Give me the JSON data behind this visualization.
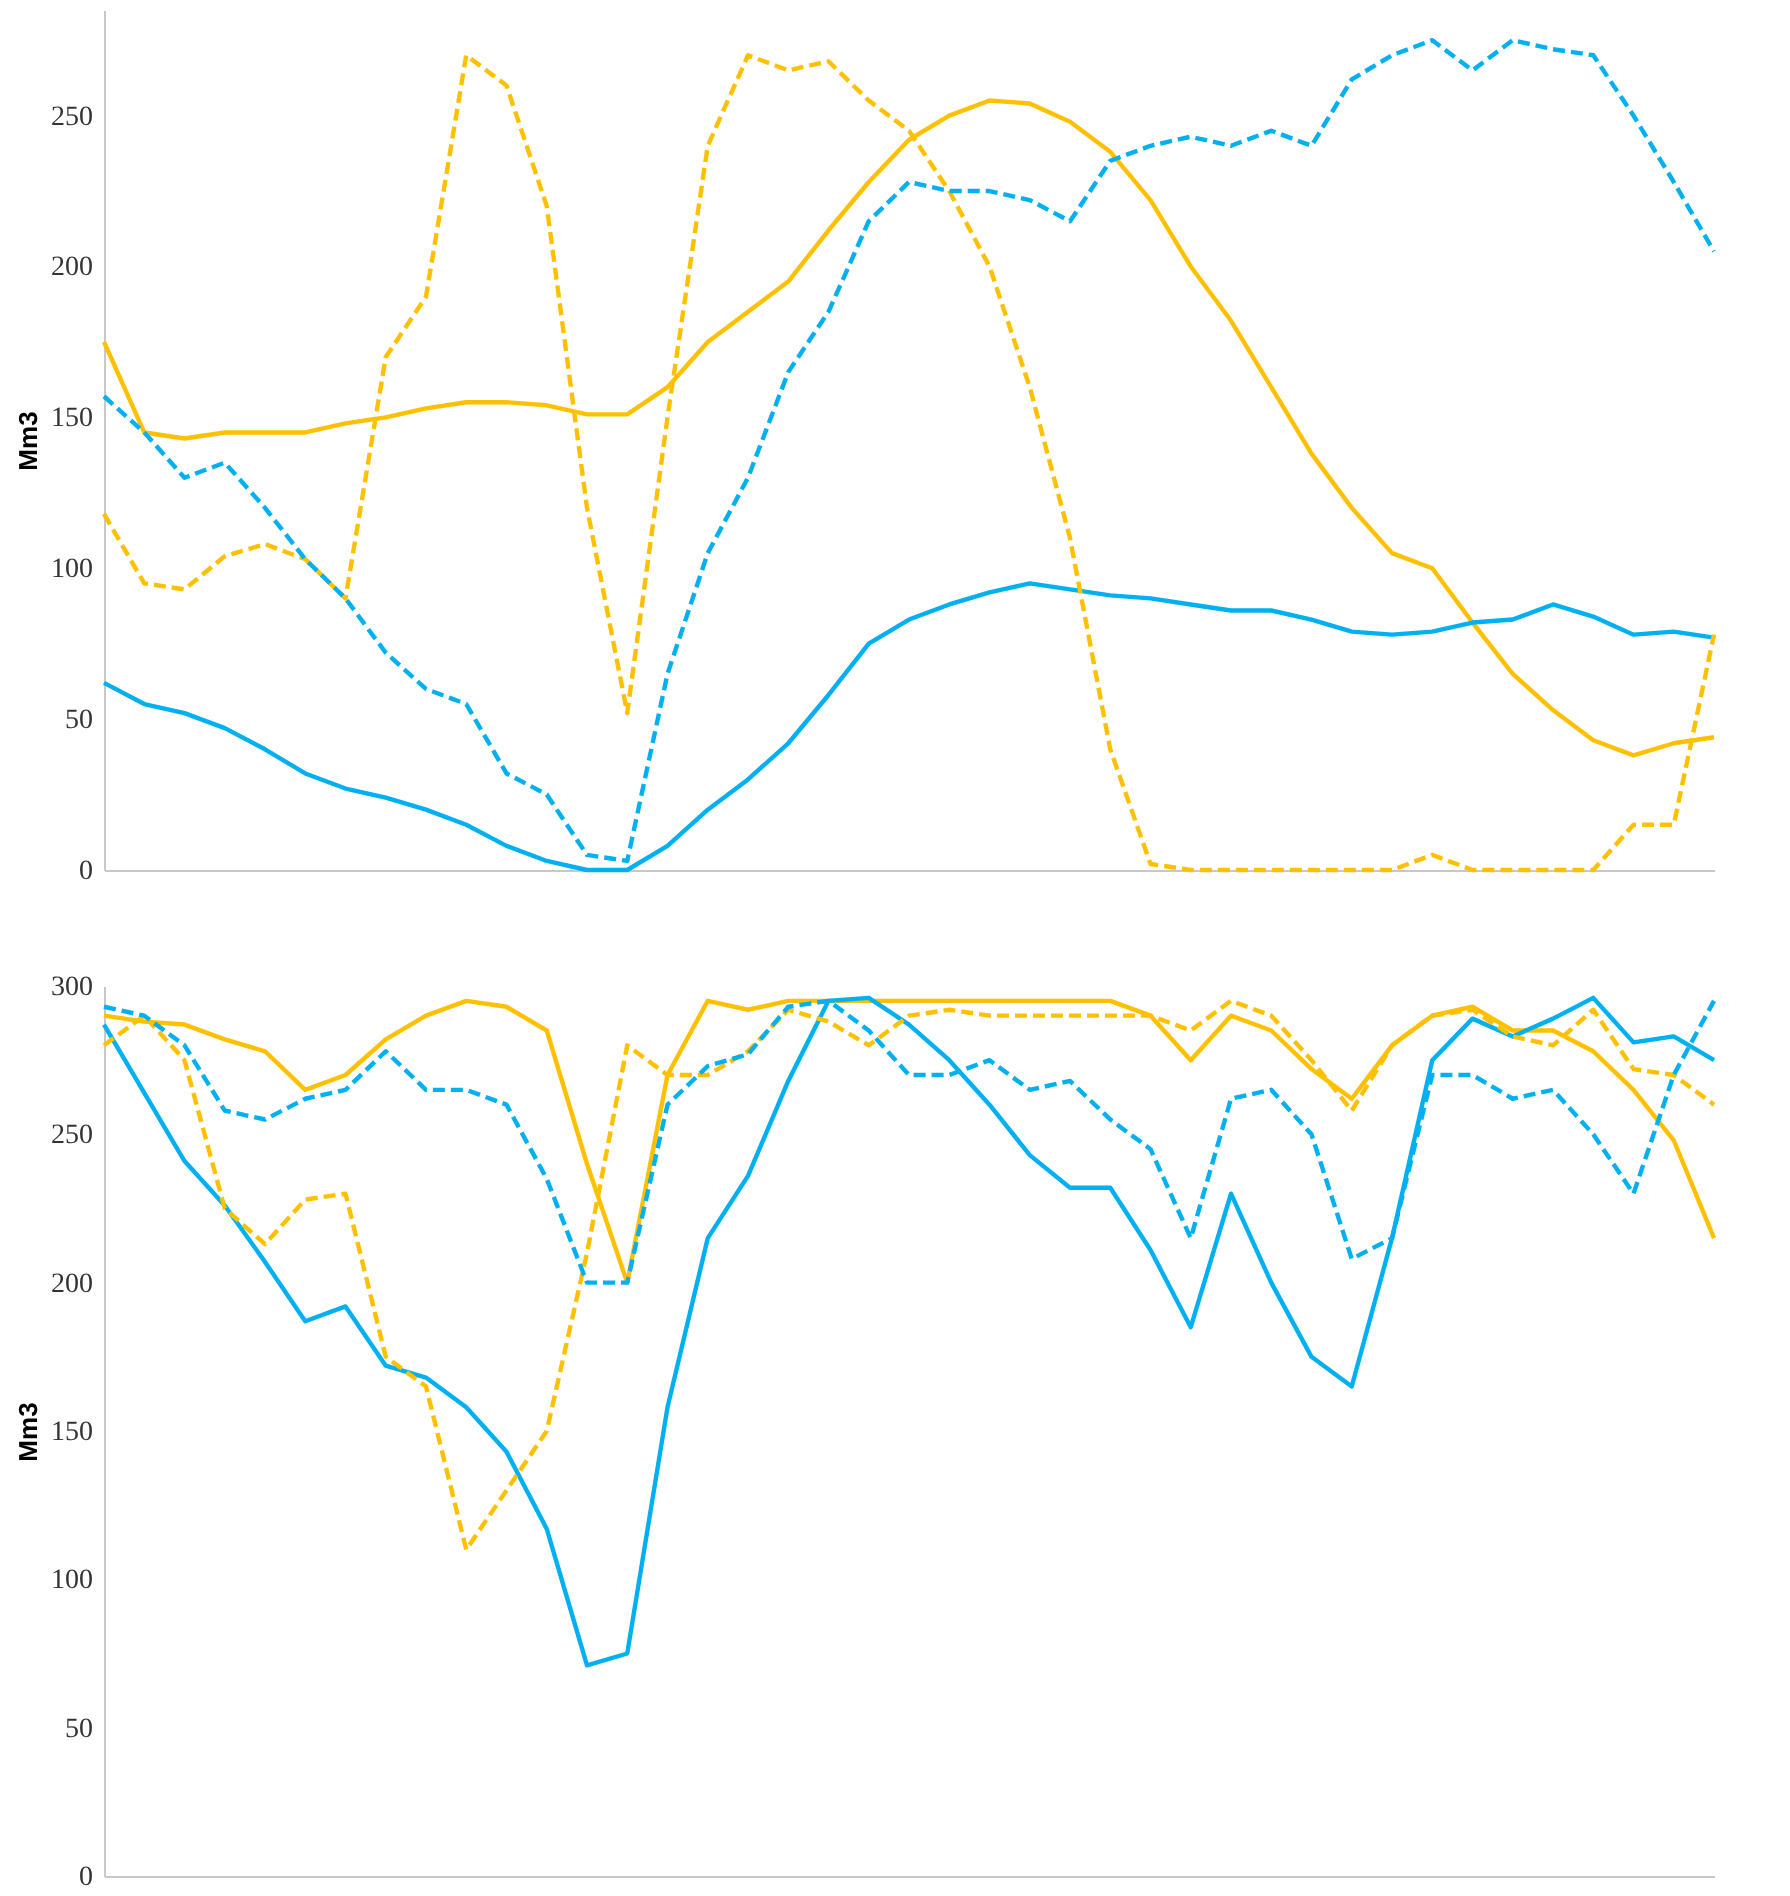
{
  "chart_data": [
    {
      "type": "line",
      "ylabel": "Mm3",
      "categories": [
        null,
        null,
        null,
        null,
        null,
        null,
        null,
        null,
        null,
        null,
        null,
        null,
        null,
        null,
        null,
        null,
        null,
        null,
        null,
        null,
        null,
        null,
        null,
        null,
        null,
        null,
        null,
        null,
        null,
        null,
        null,
        null,
        null,
        null,
        null,
        null,
        null,
        null,
        null,
        null,
        null
      ],
      "ylim": [
        0,
        285
      ],
      "yticks": [
        0,
        50,
        100,
        150,
        200,
        250
      ],
      "tick_labels": "y",
      "series": [
        {
          "color": "#ffc000",
          "line_style": "solid",
          "values": [
            175,
            145,
            143,
            145,
            145,
            145,
            148,
            150,
            153,
            155,
            155,
            154,
            151,
            151,
            160,
            175,
            185,
            195,
            212,
            228,
            242,
            250,
            255,
            254,
            248,
            238,
            222,
            200,
            182,
            160,
            138,
            120,
            105,
            100,
            82,
            65,
            53,
            43,
            38,
            42,
            44
          ]
        },
        {
          "color": "#00b0f0",
          "line_style": "solid",
          "values": [
            62,
            55,
            52,
            47,
            40,
            32,
            27,
            24,
            20,
            15,
            8,
            3,
            0,
            0,
            8,
            20,
            30,
            42,
            58,
            75,
            83,
            88,
            92,
            95,
            93,
            91,
            90,
            88,
            86,
            86,
            83,
            79,
            78,
            79,
            82,
            83,
            88,
            84,
            78,
            79,
            77
          ]
        },
        {
          "color": "#ffc000",
          "line_style": "dashed",
          "values": [
            118,
            95,
            93,
            104,
            108,
            103,
            90,
            170,
            190,
            270,
            260,
            220,
            120,
            52,
            150,
            240,
            270,
            265,
            268,
            255,
            245,
            225,
            200,
            160,
            110,
            40,
            2,
            0,
            0,
            0,
            0,
            0,
            0,
            5,
            0,
            0,
            0,
            0,
            15,
            15,
            78
          ]
        },
        {
          "color": "#00b0f0",
          "line_style": "dashed",
          "values": [
            157,
            145,
            130,
            135,
            120,
            103,
            90,
            72,
            60,
            55,
            32,
            25,
            5,
            3,
            65,
            105,
            130,
            165,
            185,
            215,
            228,
            225,
            225,
            222,
            215,
            235,
            240,
            243,
            240,
            245,
            240,
            262,
            270,
            275,
            265,
            275,
            272,
            270,
            250,
            228,
            205
          ]
        }
      ]
    },
    {
      "type": "line",
      "ylabel": "Mm3",
      "categories": [
        null,
        null,
        null,
        null,
        null,
        null,
        null,
        null,
        null,
        null,
        null,
        null,
        null,
        null,
        null,
        null,
        null,
        null,
        null,
        null,
        null,
        null,
        null,
        null,
        null,
        null,
        null,
        null,
        null,
        null,
        null,
        null,
        null,
        null,
        null,
        null,
        null,
        null,
        null,
        null,
        null
      ],
      "ylim": [
        0,
        300
      ],
      "yticks": [
        0,
        50,
        100,
        150,
        200,
        250,
        300
      ],
      "tick_labels": "y",
      "series": [
        {
          "color": "#ffc000",
          "line_style": "solid",
          "values": [
            290,
            288,
            287,
            282,
            278,
            265,
            270,
            282,
            290,
            295,
            293,
            285,
            240,
            200,
            270,
            295,
            292,
            295,
            295,
            295,
            295,
            295,
            295,
            295,
            295,
            295,
            290,
            275,
            290,
            285,
            272,
            262,
            280,
            290,
            293,
            285,
            285,
            278,
            265,
            248,
            215
          ]
        },
        {
          "color": "#00b0f0",
          "line_style": "solid",
          "values": [
            287,
            264,
            241,
            226,
            207,
            187,
            192,
            172,
            168,
            158,
            143,
            117,
            71,
            75,
            158,
            215,
            236,
            268,
            295,
            296,
            287,
            275,
            260,
            243,
            232,
            232,
            211,
            185,
            230,
            200,
            175,
            165,
            215,
            275,
            289,
            283,
            289,
            296,
            281,
            283,
            275
          ]
        },
        {
          "color": "#ffc000",
          "line_style": "dashed",
          "values": [
            280,
            290,
            275,
            225,
            213,
            228,
            230,
            175,
            165,
            110,
            130,
            150,
            210,
            280,
            270,
            270,
            278,
            292,
            288,
            280,
            290,
            292,
            290,
            290,
            290,
            290,
            290,
            285,
            295,
            290,
            275,
            258,
            280,
            290,
            292,
            283,
            280,
            292,
            272,
            270,
            260
          ]
        },
        {
          "color": "#00b0f0",
          "line_style": "dashed",
          "values": [
            293,
            290,
            280,
            258,
            255,
            262,
            265,
            278,
            265,
            265,
            260,
            235,
            200,
            200,
            260,
            273,
            277,
            293,
            295,
            285,
            270,
            270,
            275,
            265,
            268,
            255,
            245,
            215,
            262,
            265,
            250,
            208,
            215,
            270,
            270,
            262,
            265,
            250,
            230,
            270,
            295
          ]
        }
      ]
    }
  ]
}
